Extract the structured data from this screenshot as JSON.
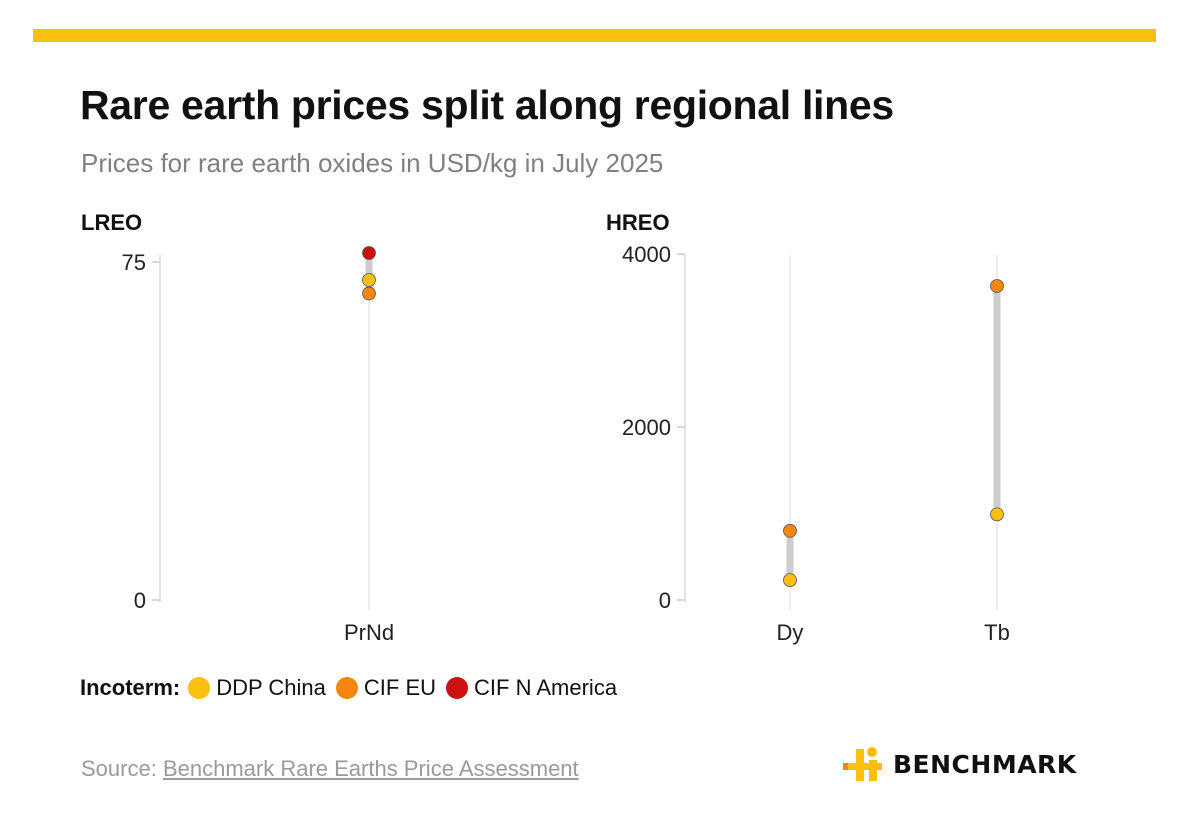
{
  "title": "Rare earth prices split along regional lines",
  "subtitle": "Prices for rare earth oxides in USD/kg in July 2025",
  "colors": {
    "accent_bar": "#fbbf0e",
    "DDP China": "#fbbf0e",
    "CIF EU": "#f7860f",
    "CIF N America": "#cc1111",
    "range_bar": "#cccccc"
  },
  "legend": {
    "title": "Incoterm:",
    "items": [
      "DDP China",
      "CIF EU",
      "CIF N America"
    ]
  },
  "source": {
    "prefix": "Source: ",
    "link_text": "Benchmark Rare Earths Price Assessment"
  },
  "logo": {
    "text": "BENCHMARK"
  },
  "chart_data": [
    {
      "type": "scatter",
      "panel_label": "LREO",
      "categories": [
        "PrNd"
      ],
      "yticks": [
        0,
        75
      ],
      "ylim": [
        0,
        77
      ],
      "grid": false,
      "series": [
        {
          "name": "DDP China",
          "values": [
            71
          ]
        },
        {
          "name": "CIF EU",
          "values": [
            68
          ]
        },
        {
          "name": "CIF N America",
          "values": [
            77
          ]
        }
      ]
    },
    {
      "type": "scatter",
      "panel_label": "HREO",
      "categories": [
        "Dy",
        "Tb"
      ],
      "yticks": [
        0,
        2000,
        4000
      ],
      "ylim": [
        0,
        4000
      ],
      "grid": false,
      "series": [
        {
          "name": "DDP China",
          "values": [
            230,
            990
          ]
        },
        {
          "name": "CIF EU",
          "values": [
            800,
            3630
          ]
        }
      ]
    }
  ]
}
